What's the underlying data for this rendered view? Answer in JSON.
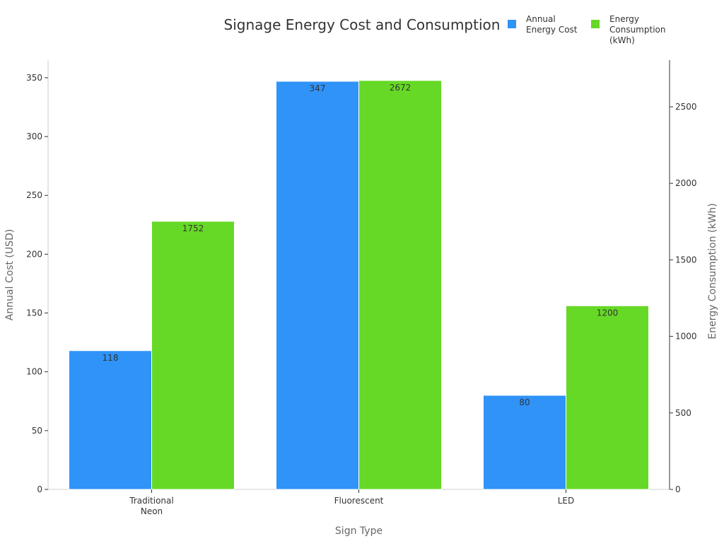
{
  "chart_data": {
    "type": "bar",
    "title": "Signage Energy Cost and Consumption",
    "xlabel": "Sign Type",
    "ylabel": "Annual Cost (USD)",
    "y2label": "Energy Consumption (kWh)",
    "categories": [
      [
        "Traditional",
        "Neon"
      ],
      [
        "Fluorescent"
      ],
      [
        "LED"
      ]
    ],
    "series": [
      {
        "name": [
          "Annual",
          "Energy Cost"
        ],
        "axis": "left",
        "color": "#2f93f8",
        "values": [
          118,
          347,
          80
        ]
      },
      {
        "name": [
          "Energy",
          "Consumption",
          "(kWh)"
        ],
        "axis": "right",
        "color": "#66d926",
        "values": [
          1752,
          2672,
          1200
        ]
      }
    ],
    "ylim": [
      0,
      365
    ],
    "y2lim": [
      0,
      2805
    ],
    "yticks": [
      0,
      50,
      100,
      150,
      200,
      250,
      300,
      350
    ],
    "y2ticks": [
      0,
      500,
      1000,
      1500,
      2000,
      2500
    ],
    "legend": "top-right",
    "grid": false
  }
}
